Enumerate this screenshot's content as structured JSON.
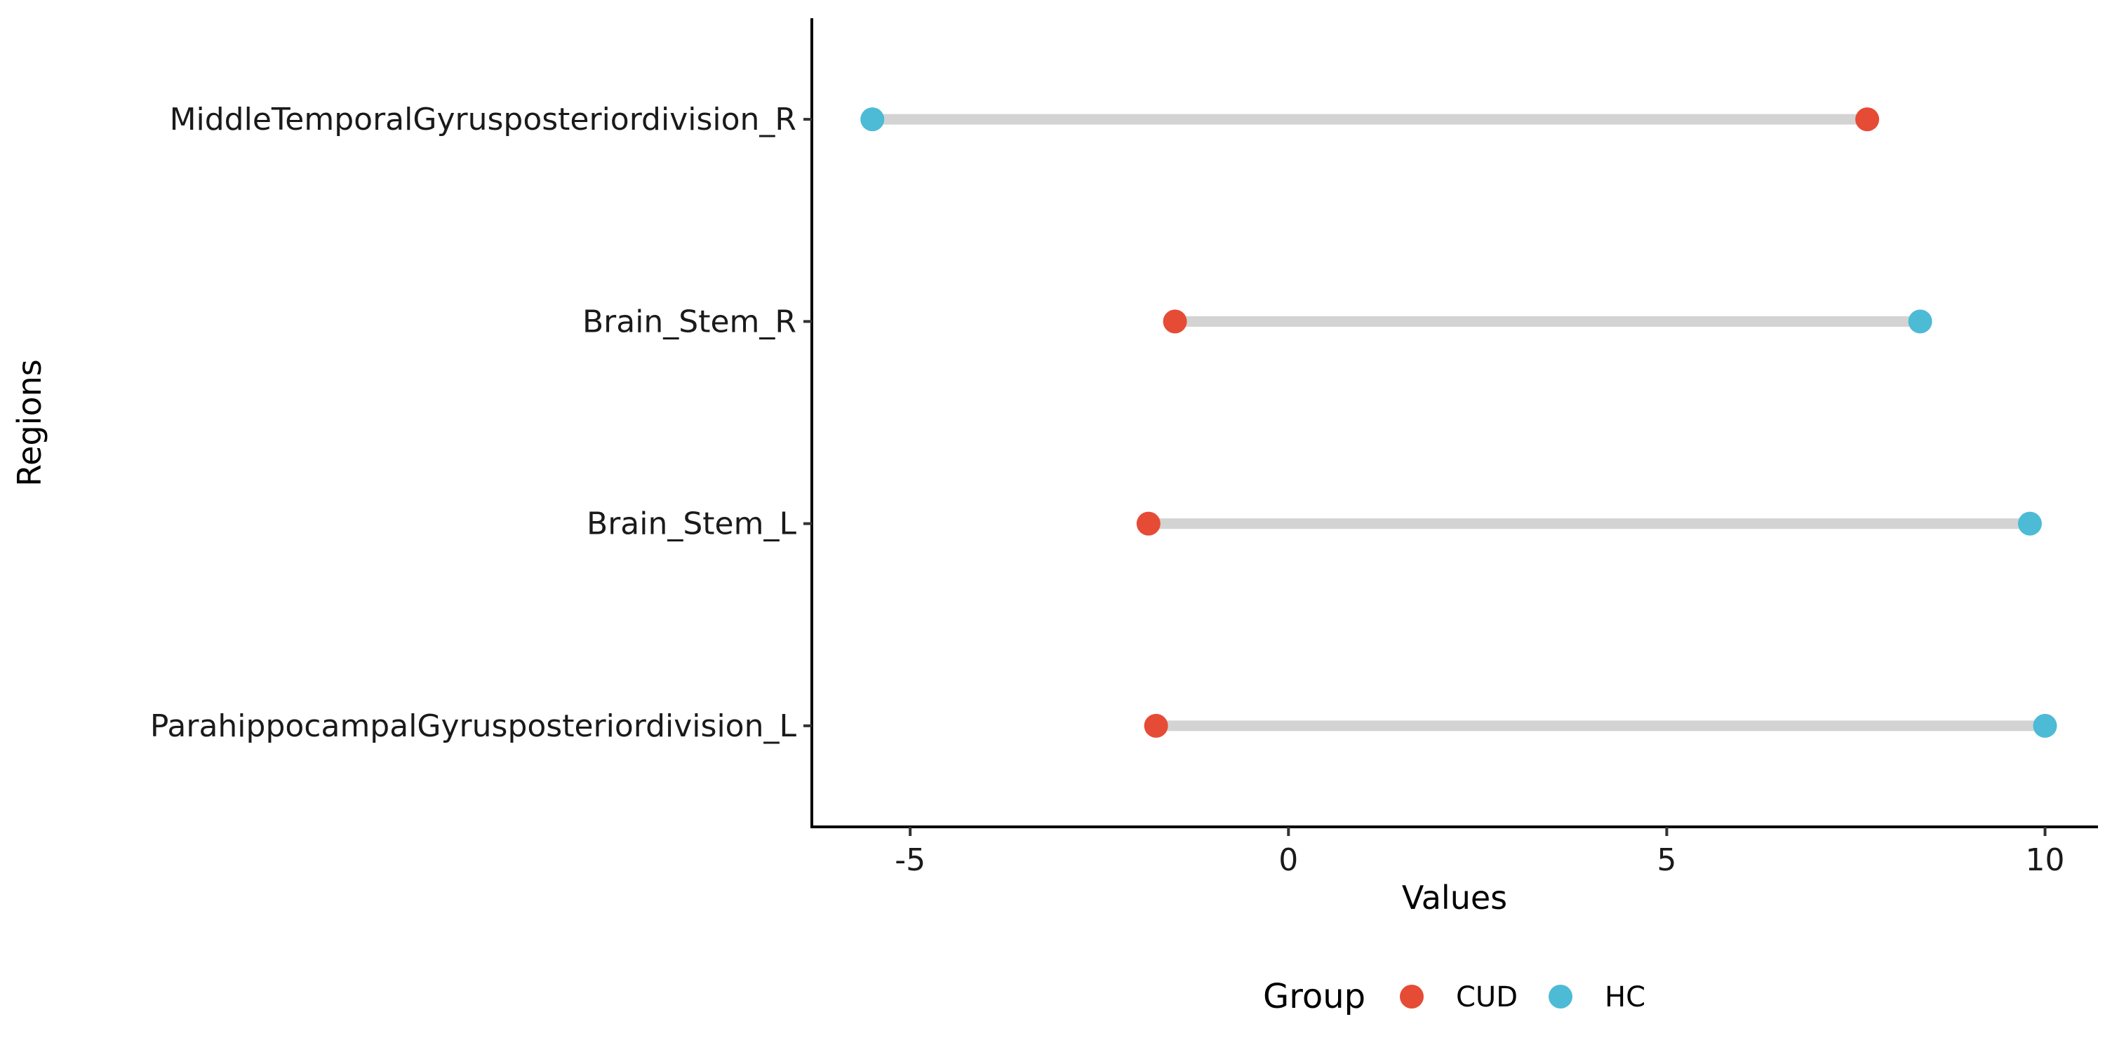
{
  "chart_data": {
    "type": "dumbbell",
    "xlabel": "Values",
    "ylabel": "Regions",
    "xlim": [
      -6.3,
      10.7
    ],
    "x_ticks": [
      -5,
      0,
      5,
      10
    ],
    "x_tick_labels": [
      "-5",
      "0",
      "5",
      "10"
    ],
    "grid": false,
    "legend_position": "bottom",
    "legend_title": "Group",
    "categories": [
      "ParahippocampalGyrusposteriordivision_L",
      "Brain_Stem_L",
      "Brain_Stem_R",
      "MiddleTemporalGyrusposteriordivision_R"
    ],
    "series": [
      {
        "name": "CUD",
        "color": "#E64B35",
        "values": [
          -1.75,
          -1.85,
          -1.5,
          7.65
        ]
      },
      {
        "name": "HC",
        "color": "#4DBBD5",
        "values": [
          10.0,
          9.8,
          8.35,
          -5.5
        ]
      }
    ],
    "segment_color": "#D3D3D3"
  }
}
